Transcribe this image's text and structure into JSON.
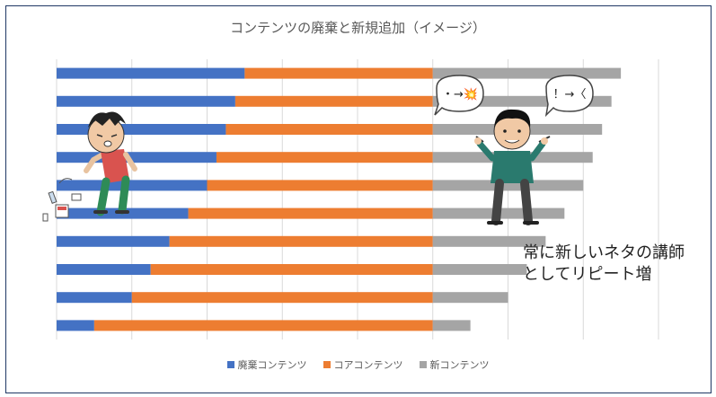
{
  "chart_data": {
    "type": "bar",
    "orientation": "horizontal",
    "stacked": true,
    "title": "コンテンツの廃棄と新規追加（イメージ）",
    "xlim": [
      0,
      16
    ],
    "grid": true,
    "legend_position": "bottom",
    "series": [
      {
        "name": "廃棄コンテンツ",
        "color": "#4472c4",
        "values": [
          5.0,
          4.75,
          4.5,
          4.25,
          4.0,
          3.5,
          3.0,
          2.5,
          2.0,
          1.0
        ]
      },
      {
        "name": "コアコンテンツ",
        "color": "#ed7d31",
        "values": [
          5.0,
          5.25,
          5.5,
          5.75,
          6.0,
          6.5,
          7.0,
          7.5,
          8.0,
          9.0
        ]
      },
      {
        "name": "新コンテンツ",
        "color": "#a5a5a5",
        "values": [
          5.0,
          4.75,
          4.5,
          4.25,
          4.0,
          3.5,
          3.0,
          2.5,
          2.0,
          1.0
        ]
      }
    ]
  },
  "bubbles": {
    "left": "・→💥",
    "right": "！→〈"
  },
  "annotation": {
    "line1": "常に新しいネタの講師",
    "line2": "としてリピート増"
  }
}
